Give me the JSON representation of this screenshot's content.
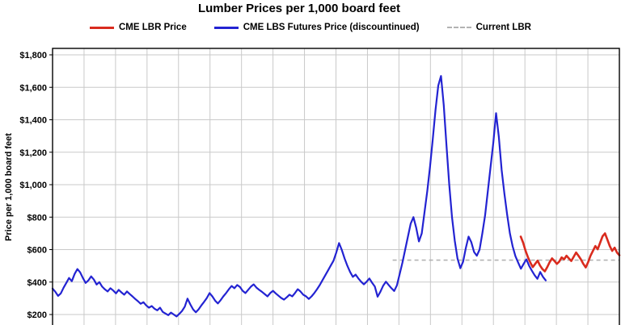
{
  "legend": [
    {
      "label": "CME LBR Price",
      "color": "#d92b1e",
      "style": "solid"
    },
    {
      "label": "CME LBS Futures Price (discountinued)",
      "color": "#2323d2",
      "style": "solid"
    },
    {
      "label": "Current LBR",
      "color": "#b3b3b3",
      "style": "dashed"
    }
  ],
  "chart_data": {
    "type": "line",
    "title": "Lumber Prices per 1,000 board feet",
    "xlabel": "",
    "ylabel": "Price per 1,000 board feet",
    "ylim": [
      200,
      1800
    ],
    "ytick_step": 200,
    "ytick_labels": [
      "$200",
      "$400",
      "$600",
      "$800",
      "$1,000",
      "$1,200",
      "$1,400",
      "$1,600",
      "$1,800"
    ],
    "grid": true,
    "vertical_gridline_count": 18,
    "legend_position": "top",
    "series": [
      {
        "name": "CME LBS Futures Price (discountinued)",
        "color": "#2323d2",
        "dashed": false,
        "x_start": 0.0,
        "x_end": 0.87,
        "values": [
          360,
          340,
          315,
          330,
          365,
          395,
          425,
          405,
          450,
          480,
          460,
          425,
          395,
          410,
          435,
          415,
          385,
          400,
          372,
          355,
          342,
          362,
          348,
          330,
          352,
          336,
          322,
          342,
          326,
          312,
          296,
          282,
          266,
          276,
          256,
          242,
          252,
          236,
          226,
          242,
          216,
          206,
          196,
          212,
          200,
          188,
          204,
          222,
          248,
          298,
          262,
          232,
          214,
          232,
          256,
          278,
          302,
          332,
          312,
          286,
          268,
          288,
          312,
          332,
          356,
          376,
          362,
          382,
          370,
          346,
          332,
          352,
          372,
          386,
          366,
          352,
          340,
          326,
          312,
          332,
          346,
          330,
          316,
          302,
          292,
          306,
          322,
          312,
          332,
          356,
          342,
          322,
          312,
          296,
          312,
          332,
          356,
          382,
          412,
          442,
          472,
          502,
          532,
          582,
          640,
          598,
          545,
          500,
          462,
          432,
          446,
          422,
          402,
          386,
          402,
          422,
          396,
          372,
          310,
          340,
          378,
          402,
          382,
          362,
          345,
          380,
          450,
          520,
          600,
          680,
          760,
          800,
          735,
          650,
          700,
          830,
          960,
          1110,
          1280,
          1460,
          1610,
          1670,
          1490,
          1240,
          1000,
          800,
          655,
          545,
          485,
          525,
          610,
          680,
          645,
          585,
          562,
          600,
          700,
          810,
          960,
          1110,
          1260,
          1440,
          1295,
          1090,
          945,
          815,
          700,
          620,
          560,
          520,
          482,
          512,
          540,
          500,
          470,
          442,
          420,
          462,
          432,
          410
        ]
      },
      {
        "name": "CME LBR Price",
        "color": "#d92b1e",
        "dashed": false,
        "x_start": 0.826,
        "x_end": 1.0,
        "values": [
          680,
          642,
          592,
          552,
          520,
          492,
          512,
          532,
          502,
          480,
          466,
          492,
          522,
          546,
          530,
          512,
          526,
          552,
          540,
          562,
          546,
          530,
          556,
          582,
          562,
          540,
          512,
          490,
          522,
          562,
          592,
          622,
          602,
          642,
          682,
          700,
          662,
          622,
          592,
          612,
          582,
          565
        ]
      },
      {
        "name": "Current LBR",
        "color": "#b3b3b3",
        "dashed": true,
        "x_start": 0.6,
        "x_end": 1.0,
        "value": 535
      }
    ]
  }
}
